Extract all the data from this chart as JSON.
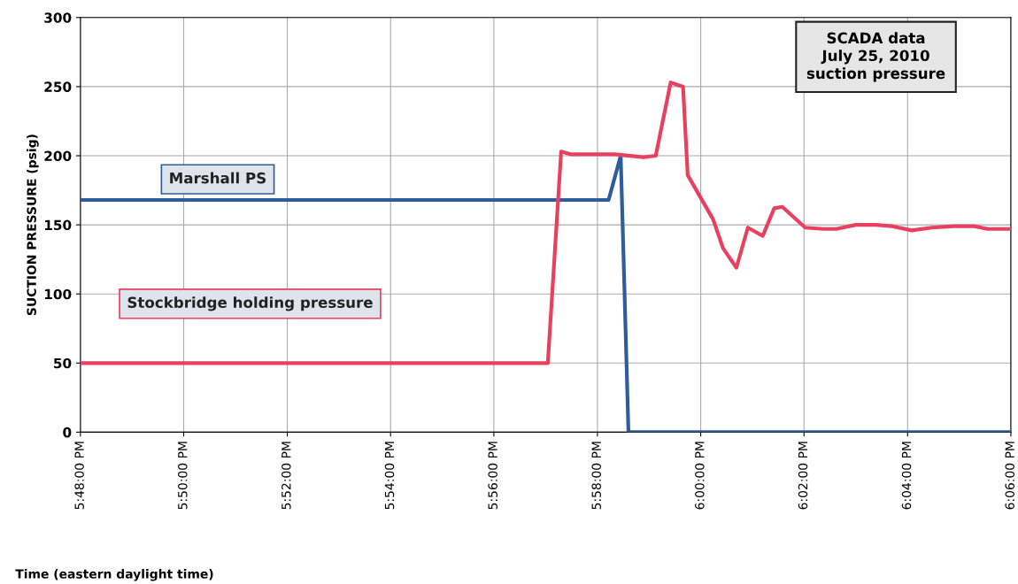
{
  "chart_data": {
    "type": "line",
    "xlabel": "Time (eastern daylight time)",
    "ylabel": "SUCTION PRESSURE (psig)",
    "annotations": [
      "SCADA data\nJuly 25, 2010\nsuction pressure"
    ],
    "series": [
      {
        "name": "Marshall PS",
        "color": "#2f5d9a",
        "x": [
          17.8,
          17.9703,
          17.9742,
          17.9767,
          18.1
        ],
        "values": [
          168,
          168,
          200,
          0,
          0
        ]
      },
      {
        "name": "Stockbridge holding pressure",
        "color": "#e8415f",
        "x": [
          17.8,
          17.9507,
          17.955,
          17.9582,
          17.9723,
          17.9815,
          17.9855,
          17.9903,
          17.9943,
          17.9958,
          18.004,
          18.0072,
          18.0115,
          18.0152,
          18.02,
          18.0237,
          18.0263,
          18.0337,
          18.0395,
          18.0437,
          18.05,
          18.0565,
          18.0617,
          18.068,
          18.0745,
          18.0817,
          18.0882,
          18.0925,
          18.1
        ],
        "values": [
          50,
          50,
          203,
          201,
          201,
          199,
          200,
          253,
          250,
          186,
          154,
          133,
          119,
          148,
          142,
          162,
          163,
          148,
          147,
          147,
          150,
          150,
          149,
          146,
          148,
          149,
          149,
          147,
          147
        ]
      }
    ],
    "xlim": [
      17.8,
      18.1
    ],
    "xticks": [
      {
        "value": 17.8,
        "label": "5:48:00 PM"
      },
      {
        "value": 17.8333,
        "label": "5:50:00 PM"
      },
      {
        "value": 17.8667,
        "label": "5:52:00 PM"
      },
      {
        "value": 17.9,
        "label": "5:54:00 PM"
      },
      {
        "value": 17.9333,
        "label": "5:56:00 PM"
      },
      {
        "value": 17.9667,
        "label": "5:58:00 PM"
      },
      {
        "value": 18.0,
        "label": "6:00:00 PM"
      },
      {
        "value": 18.0333,
        "label": "6:02:00 PM"
      },
      {
        "value": 18.0667,
        "label": "6:04:00 PM"
      },
      {
        "value": 18.1,
        "label": "6:06:00 PM"
      }
    ],
    "ylim": [
      0,
      300
    ],
    "yticks": [
      0,
      50,
      100,
      150,
      200,
      250,
      300
    ],
    "grid": true,
    "legend": false,
    "marker": "none",
    "line_style": "solid"
  }
}
